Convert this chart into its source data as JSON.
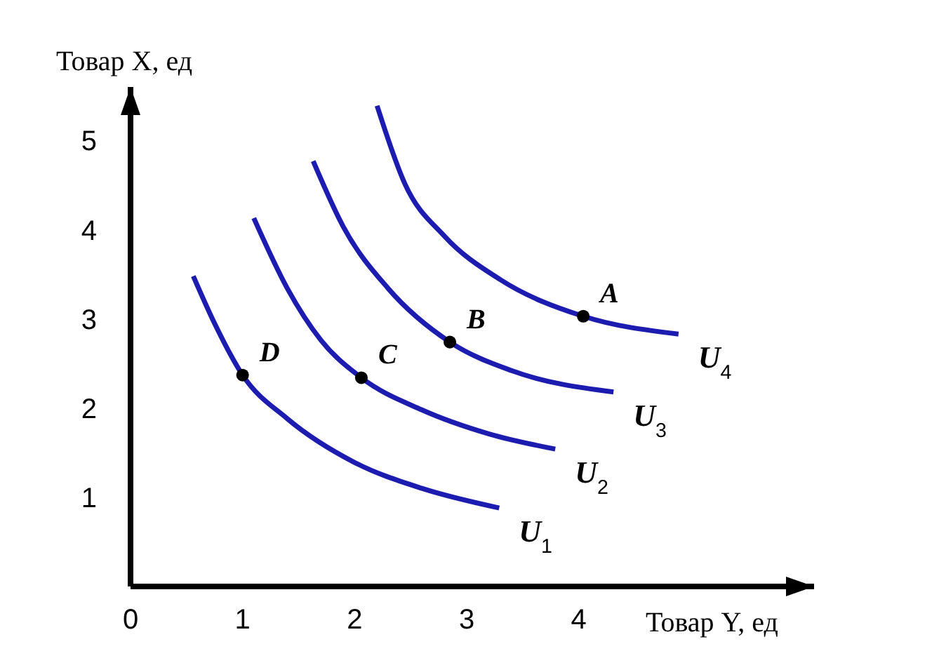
{
  "chart_data": {
    "type": "line",
    "xlabel": "Товар Y, ед",
    "ylabel": "Товар X, ед",
    "xlim": [
      0,
      6.1
    ],
    "ylim": [
      0,
      5.6
    ],
    "xticks": [
      0,
      1,
      2,
      3,
      4
    ],
    "yticks": [
      1,
      2,
      3,
      4,
      5
    ],
    "grid": false,
    "legend": false,
    "line_style": "solid",
    "series": [
      {
        "name": "U$_{1}$",
        "color": "#1c1cb0",
        "marker": "none",
        "x": [
          0.56,
          0.75,
          1.0,
          1.4,
          2.0,
          2.6,
          3.29
        ],
        "values": [
          3.48,
          2.95,
          2.37,
          1.88,
          1.39,
          1.1,
          0.88
        ]
      },
      {
        "name": "U$_{2}$",
        "color": "#1c1cb0",
        "marker": "none",
        "x": [
          1.1,
          1.4,
          1.7,
          2.06,
          2.6,
          3.2,
          3.79
        ],
        "values": [
          4.13,
          3.34,
          2.76,
          2.34,
          1.98,
          1.71,
          1.54
        ]
      },
      {
        "name": "U$_{3}$",
        "color": "#1c1cb0",
        "marker": "none",
        "x": [
          1.63,
          1.9,
          2.3,
          2.85,
          3.4,
          4.31
        ],
        "values": [
          4.77,
          4.03,
          3.34,
          2.74,
          2.42,
          2.18
        ]
      },
      {
        "name": "U$_{4}$",
        "color": "#1c1cb0",
        "marker": "none",
        "x": [
          2.2,
          2.45,
          2.8,
          3.3,
          4.04,
          4.89
        ],
        "values": [
          5.39,
          4.51,
          3.93,
          3.44,
          3.03,
          2.83
        ]
      },
      {
        "type": "scatter",
        "color": "#000000",
        "marker": "circle",
        "x": [
          1.0,
          2.06,
          2.85,
          4.04
        ],
        "values": [
          2.37,
          2.34,
          2.74,
          3.03
        ]
      }
    ],
    "annotations": [
      {
        "text": "A",
        "x": 4.04,
        "y": 3.03
      },
      {
        "text": "B",
        "x": 2.85,
        "y": 2.74
      },
      {
        "text": "C",
        "x": 2.06,
        "y": 2.34
      },
      {
        "text": "D",
        "x": 1.0,
        "y": 2.37
      }
    ]
  }
}
